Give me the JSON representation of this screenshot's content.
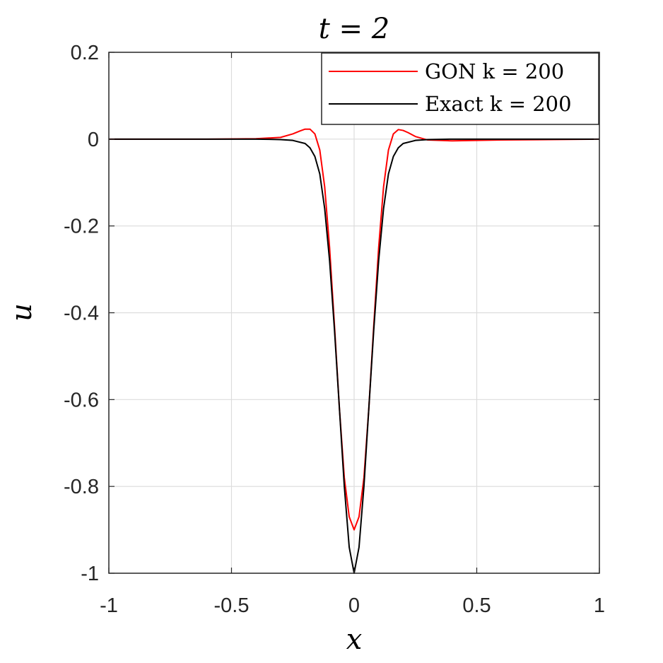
{
  "chart_data": {
    "type": "line",
    "title": "t = 2",
    "xlabel": "x",
    "ylabel": "u",
    "xlim": [
      -1,
      1
    ],
    "ylim": [
      -1,
      0.2
    ],
    "xticks": [
      -1,
      -0.5,
      0,
      0.5,
      1
    ],
    "xtick_labels": [
      "-1",
      "-0.5",
      "0",
      "0.5",
      "1"
    ],
    "yticks": [
      -1,
      -0.8,
      -0.6,
      -0.4,
      -0.2,
      0,
      0.2
    ],
    "ytick_labels": [
      "-1",
      "-0.8",
      "-0.6",
      "-0.4",
      "-0.2",
      "0",
      "0.2"
    ],
    "grid": true,
    "legend_position": "top-right",
    "series": [
      {
        "name": "GON k = 200",
        "color": "#ff0000",
        "x": [
          -1,
          -0.6,
          -0.4,
          -0.3,
          -0.25,
          -0.22,
          -0.2,
          -0.18,
          -0.16,
          -0.14,
          -0.12,
          -0.1,
          -0.08,
          -0.06,
          -0.04,
          -0.02,
          0,
          0.02,
          0.04,
          0.06,
          0.08,
          0.1,
          0.12,
          0.14,
          0.16,
          0.18,
          0.2,
          0.22,
          0.25,
          0.3,
          0.4,
          0.5,
          0.6,
          1
        ],
        "y": [
          0,
          0,
          0.001,
          0.004,
          0.012,
          0.019,
          0.023,
          0.023,
          0.012,
          -0.025,
          -0.11,
          -0.25,
          -0.43,
          -0.62,
          -0.78,
          -0.87,
          -0.9,
          -0.87,
          -0.78,
          -0.62,
          -0.43,
          -0.25,
          -0.11,
          -0.025,
          0.012,
          0.022,
          0.02,
          0.015,
          0.006,
          -0.002,
          -0.004,
          -0.003,
          -0.002,
          0
        ]
      },
      {
        "name": "Exact k = 200",
        "color": "#000000",
        "x": [
          -1,
          -0.4,
          -0.3,
          -0.25,
          -0.2,
          -0.18,
          -0.16,
          -0.14,
          -0.12,
          -0.1,
          -0.08,
          -0.06,
          -0.04,
          -0.02,
          0,
          0.02,
          0.04,
          0.06,
          0.08,
          0.1,
          0.12,
          0.14,
          0.16,
          0.18,
          0.2,
          0.25,
          0.3,
          0.4,
          1
        ],
        "y": [
          0,
          0,
          -0.001,
          -0.003,
          -0.01,
          -0.02,
          -0.04,
          -0.08,
          -0.16,
          -0.28,
          -0.44,
          -0.62,
          -0.8,
          -0.94,
          -1,
          -0.94,
          -0.8,
          -0.62,
          -0.44,
          -0.28,
          -0.16,
          -0.08,
          -0.04,
          -0.02,
          -0.01,
          -0.003,
          -0.001,
          0,
          0
        ]
      }
    ]
  }
}
